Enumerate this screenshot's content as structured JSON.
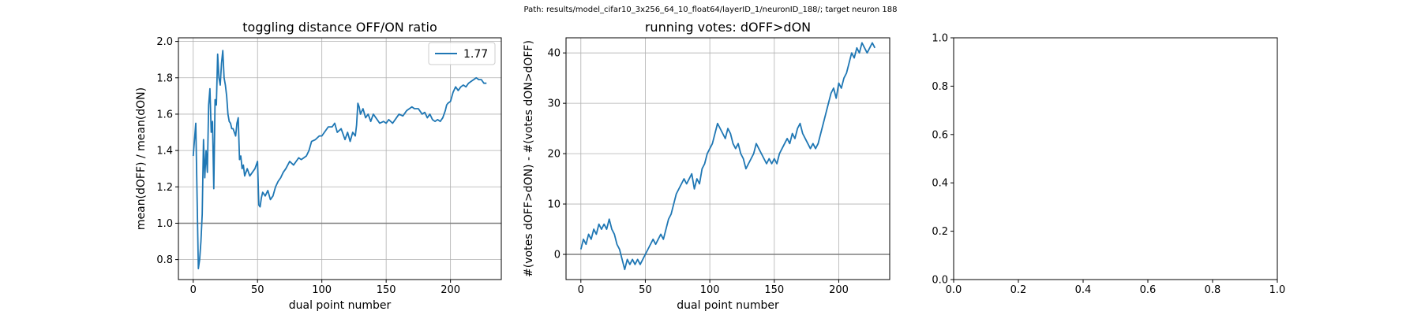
{
  "suptitle": "Path: results/model_cifar10_3x256_64_10_float64/layerID_1/neuronID_188/; target neuron 188",
  "colors": {
    "line": "#1f77b4",
    "grid": "#b0b0b0",
    "refline": "#7f7f7f",
    "axes": "#000000"
  },
  "chart_data": [
    {
      "type": "line",
      "title": "toggling distance OFF/ON ratio",
      "xlabel": "dual point number",
      "ylabel": "mean(dOFF) / mean(dON)",
      "xlim": [
        -11.5,
        239.5
      ],
      "ylim": [
        0.69,
        2.02
      ],
      "xticks": [
        0,
        50,
        100,
        150,
        200
      ],
      "yticks": [
        0.8,
        1.0,
        1.2,
        1.4,
        1.6,
        1.8,
        2.0
      ],
      "ytick_labels": [
        "0.8",
        "1.0",
        "1.2",
        "1.4",
        "1.6",
        "1.8",
        "2.0"
      ],
      "grid": true,
      "hline": 1.0,
      "legend": {
        "position": "top-right",
        "label": "1.77"
      },
      "series": [
        {
          "name": "1.77",
          "x": [
            0,
            1,
            2,
            3,
            4,
            5,
            6,
            7,
            8,
            9,
            10,
            11,
            12,
            13,
            14,
            15,
            16,
            17,
            18,
            19,
            20,
            21,
            22,
            23,
            24,
            25,
            26,
            27,
            28,
            29,
            30,
            31,
            32,
            33,
            34,
            35,
            36,
            37,
            38,
            39,
            40,
            42,
            44,
            46,
            48,
            50,
            51,
            52,
            53,
            54,
            56,
            58,
            60,
            62,
            64,
            66,
            68,
            70,
            72,
            75,
            78,
            80,
            82,
            84,
            86,
            88,
            90,
            92,
            95,
            98,
            100,
            102,
            105,
            108,
            110,
            112,
            115,
            118,
            120,
            122,
            124,
            126,
            127,
            128,
            129,
            130,
            132,
            134,
            136,
            138,
            140,
            142,
            145,
            148,
            150,
            152,
            155,
            158,
            160,
            163,
            166,
            170,
            172,
            175,
            178,
            180,
            182,
            184,
            186,
            188,
            190,
            192,
            194,
            195,
            196,
            197,
            198,
            200,
            202,
            204,
            206,
            208,
            210,
            212,
            214,
            216,
            218,
            220,
            222,
            224,
            226,
            228
          ],
          "y": [
            1.37,
            1.46,
            1.55,
            1.15,
            0.75,
            0.8,
            0.9,
            1.05,
            1.46,
            1.25,
            1.4,
            1.28,
            1.65,
            1.74,
            1.5,
            1.56,
            1.19,
            1.68,
            1.65,
            1.93,
            1.8,
            1.76,
            1.88,
            1.95,
            1.8,
            1.76,
            1.7,
            1.6,
            1.56,
            1.55,
            1.52,
            1.52,
            1.5,
            1.48,
            1.55,
            1.58,
            1.35,
            1.37,
            1.3,
            1.32,
            1.26,
            1.3,
            1.26,
            1.28,
            1.3,
            1.34,
            1.1,
            1.09,
            1.14,
            1.17,
            1.15,
            1.18,
            1.13,
            1.15,
            1.2,
            1.23,
            1.25,
            1.28,
            1.3,
            1.34,
            1.32,
            1.34,
            1.36,
            1.35,
            1.36,
            1.37,
            1.4,
            1.45,
            1.46,
            1.48,
            1.48,
            1.5,
            1.53,
            1.53,
            1.55,
            1.5,
            1.52,
            1.46,
            1.5,
            1.45,
            1.5,
            1.48,
            1.54,
            1.66,
            1.64,
            1.6,
            1.63,
            1.58,
            1.6,
            1.56,
            1.6,
            1.58,
            1.55,
            1.56,
            1.55,
            1.57,
            1.55,
            1.58,
            1.6,
            1.59,
            1.62,
            1.64,
            1.63,
            1.63,
            1.6,
            1.61,
            1.58,
            1.6,
            1.57,
            1.56,
            1.57,
            1.56,
            1.58,
            1.6,
            1.62,
            1.65,
            1.66,
            1.67,
            1.72,
            1.75,
            1.73,
            1.75,
            1.76,
            1.75,
            1.77,
            1.78,
            1.79,
            1.8,
            1.79,
            1.79,
            1.77,
            1.77
          ]
        }
      ]
    },
    {
      "type": "line",
      "title": "running votes: dOFF>dON",
      "xlabel": "dual point number",
      "ylabel": "#(votes dOFF>dON) - #(votes dON>dOFF)",
      "xlim": [
        -11.5,
        239.5
      ],
      "ylim": [
        -5,
        43
      ],
      "xticks": [
        0,
        50,
        100,
        150,
        200
      ],
      "yticks": [
        0,
        10,
        20,
        30,
        40
      ],
      "ytick_labels": [
        "0",
        "10",
        "20",
        "30",
        "40"
      ],
      "grid": true,
      "hline": 0,
      "series": [
        {
          "name": "",
          "x": [
            0,
            2,
            4,
            6,
            8,
            10,
            12,
            14,
            16,
            18,
            20,
            22,
            24,
            26,
            28,
            30,
            32,
            34,
            36,
            38,
            40,
            42,
            44,
            46,
            48,
            50,
            52,
            54,
            56,
            58,
            60,
            62,
            64,
            66,
            68,
            70,
            72,
            74,
            76,
            78,
            80,
            82,
            84,
            86,
            88,
            90,
            92,
            94,
            96,
            98,
            100,
            102,
            104,
            106,
            108,
            110,
            112,
            114,
            116,
            118,
            120,
            122,
            124,
            126,
            128,
            130,
            132,
            134,
            136,
            138,
            140,
            142,
            144,
            146,
            148,
            150,
            152,
            154,
            156,
            158,
            160,
            162,
            164,
            166,
            168,
            170,
            172,
            174,
            176,
            178,
            180,
            182,
            184,
            186,
            188,
            190,
            192,
            194,
            196,
            198,
            200,
            202,
            204,
            206,
            208,
            210,
            212,
            214,
            216,
            218,
            220,
            222,
            224,
            226,
            228
          ],
          "y": [
            1,
            3,
            2,
            4,
            3,
            5,
            4,
            6,
            5,
            6,
            5,
            7,
            5,
            4,
            2,
            1,
            -1,
            -3,
            -1,
            -2,
            -1,
            -2,
            -1,
            -2,
            -1,
            0,
            1,
            2,
            3,
            2,
            3,
            4,
            3,
            5,
            7,
            8,
            10,
            12,
            13,
            14,
            15,
            14,
            15,
            16,
            13,
            15,
            14,
            17,
            18,
            20,
            21,
            22,
            24,
            26,
            25,
            24,
            23,
            25,
            24,
            22,
            21,
            22,
            20,
            19,
            17,
            18,
            19,
            20,
            22,
            21,
            20,
            19,
            18,
            19,
            18,
            19,
            18,
            20,
            21,
            22,
            23,
            22,
            24,
            23,
            25,
            26,
            24,
            23,
            22,
            21,
            22,
            21,
            22,
            24,
            26,
            28,
            30,
            32,
            33,
            31,
            34,
            33,
            35,
            36,
            38,
            40,
            39,
            41,
            40,
            42,
            41,
            40,
            41,
            42,
            41
          ]
        }
      ]
    },
    {
      "type": "line",
      "title": "",
      "xlabel": "",
      "ylabel": "",
      "xlim": [
        0,
        1
      ],
      "ylim": [
        0,
        1
      ],
      "xticks": [
        0,
        0.2,
        0.4,
        0.6,
        0.8,
        1.0
      ],
      "xtick_labels": [
        "0.0",
        "0.2",
        "0.4",
        "0.6",
        "0.8",
        "1.0"
      ],
      "yticks": [
        0,
        0.2,
        0.4,
        0.6,
        0.8,
        1.0
      ],
      "ytick_labels": [
        "0.0",
        "0.2",
        "0.4",
        "0.6",
        "0.8",
        "1.0"
      ],
      "grid": false,
      "series": []
    }
  ]
}
